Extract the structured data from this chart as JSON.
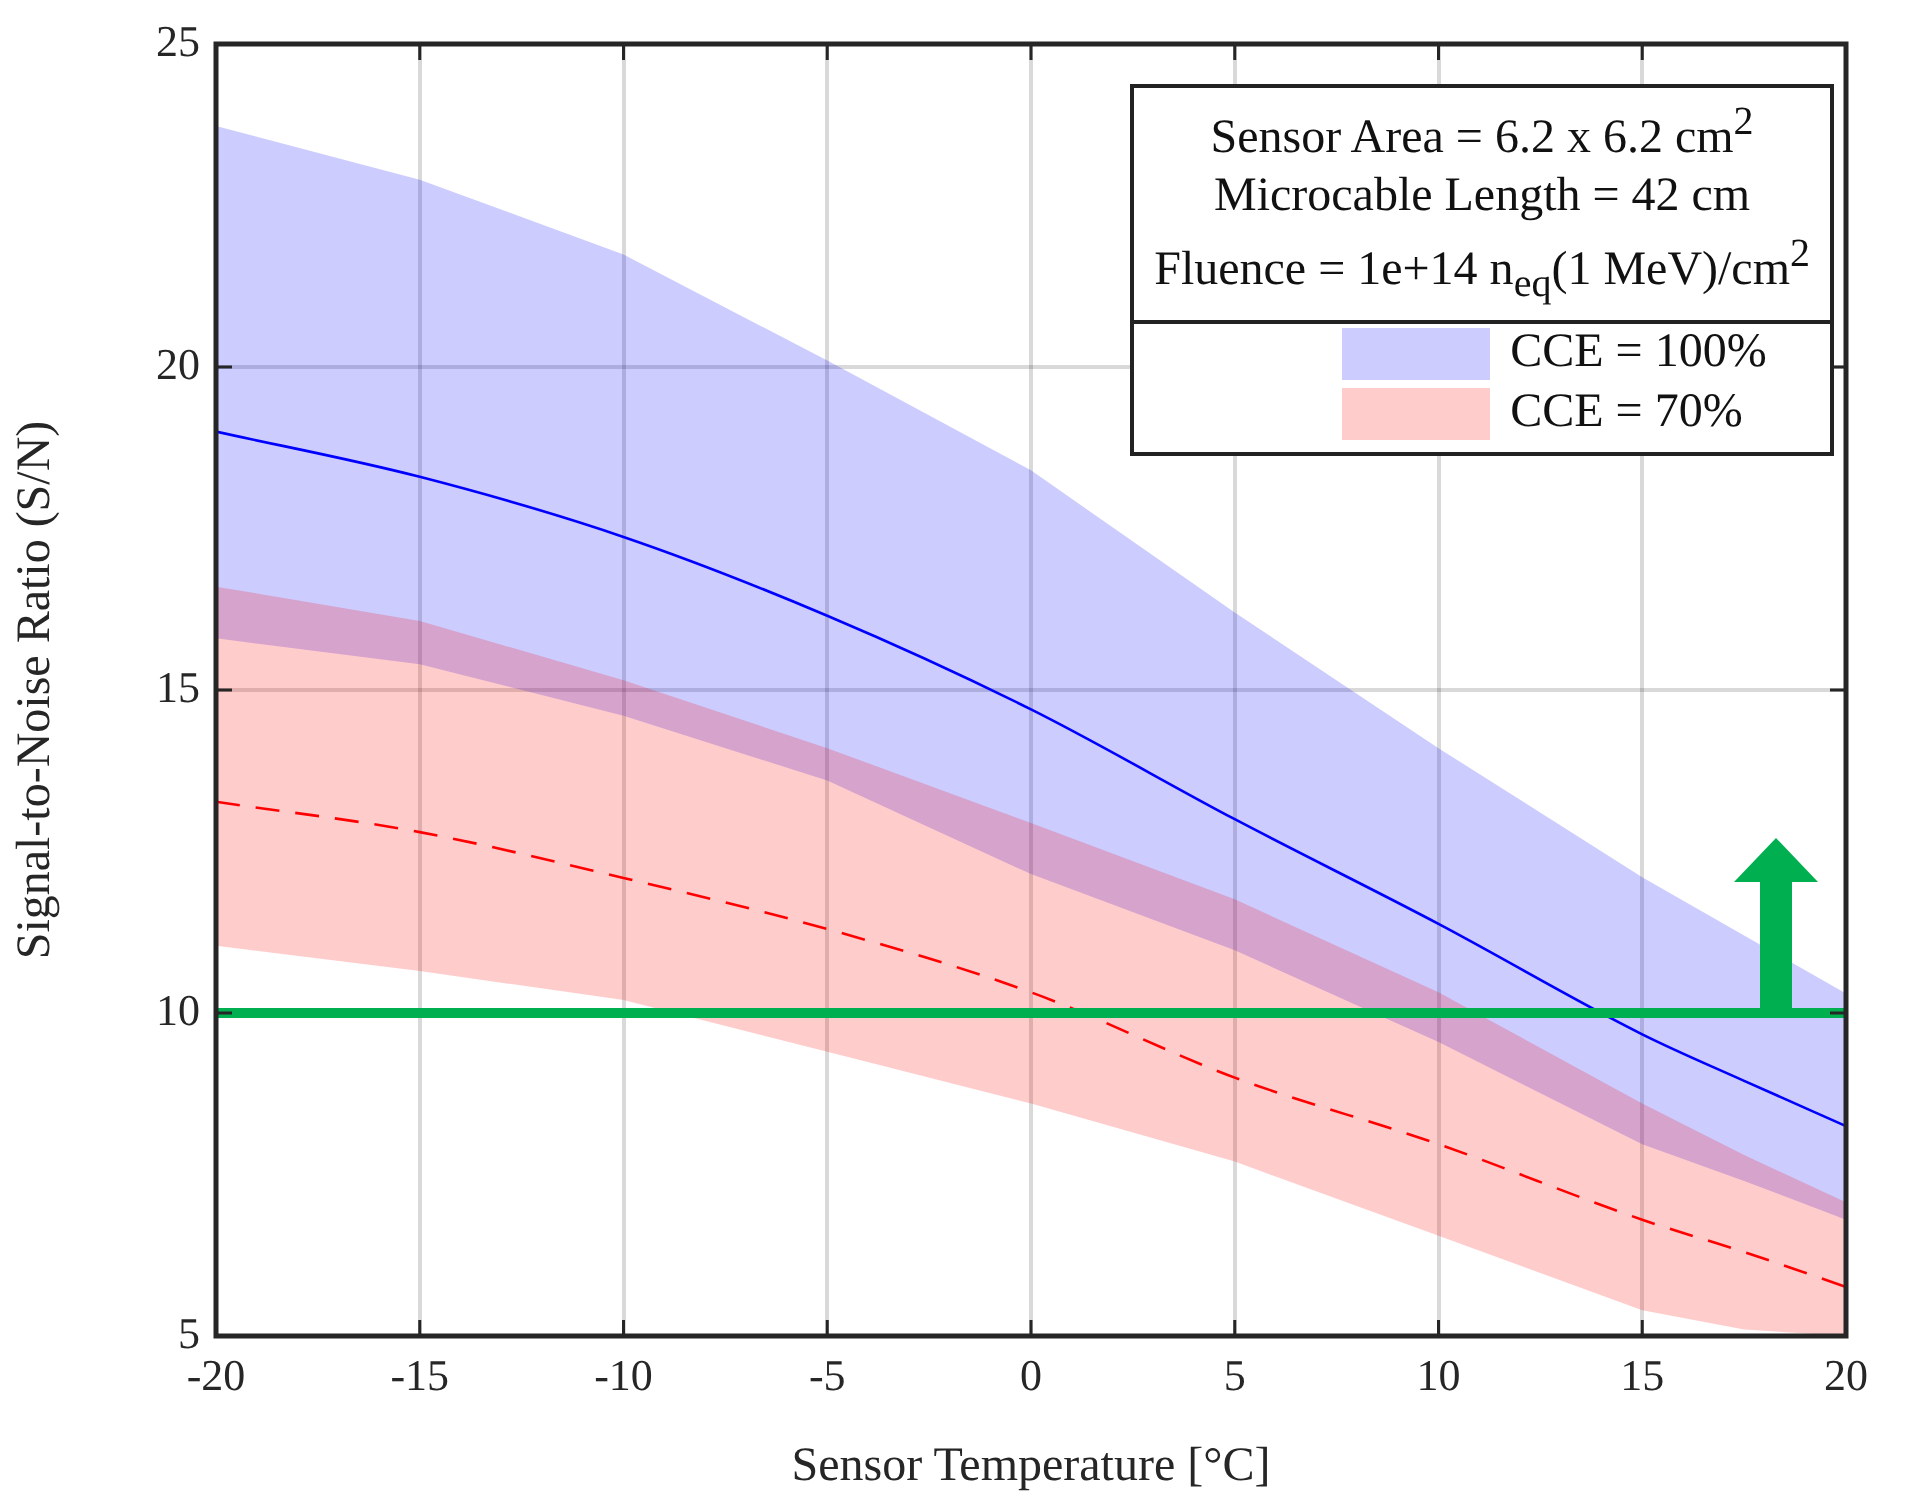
{
  "chart_data": {
    "type": "line",
    "xlabel": "Sensor Temperature [°C]",
    "ylabel": "Signal-to-Noise Ratio (S/N)",
    "x": [
      -20,
      -15,
      -10,
      -5,
      0,
      5,
      10,
      15,
      17.5,
      20
    ],
    "series": [
      {
        "name": "CCE = 100%",
        "color": "#0000ff",
        "line_style": "solid",
        "values": [
          19.0,
          18.3,
          17.37,
          16.15,
          14.7,
          13.0,
          11.38,
          9.67,
          8.95,
          8.25
        ],
        "upper": [
          23.73,
          22.9,
          21.74,
          20.1,
          18.4,
          16.2,
          14.1,
          12.1,
          11.2,
          10.3
        ],
        "lower": [
          15.8,
          15.4,
          14.6,
          13.6,
          12.15,
          10.97,
          9.55,
          7.97,
          7.4,
          6.8
        ]
      },
      {
        "name": "CCE = 70%",
        "color": "#ff0000",
        "line_style": "dashed",
        "values": [
          13.27,
          12.8,
          12.09,
          11.3,
          10.32,
          9.0,
          7.97,
          6.8,
          6.3,
          5.76
        ],
        "upper": [
          16.6,
          16.07,
          15.15,
          14.1,
          12.94,
          11.76,
          10.32,
          8.6,
          7.8,
          7.07
        ],
        "lower": [
          11.04,
          10.65,
          10.2,
          9.4,
          8.6,
          7.7,
          6.55,
          5.4,
          5.1,
          5.0
        ]
      }
    ],
    "xlim": [
      -20,
      20
    ],
    "xticks": [
      -20,
      -15,
      -10,
      -5,
      0,
      5,
      10,
      15,
      20
    ],
    "ylim": [
      5,
      25
    ],
    "yticks": [
      5,
      10,
      15,
      20,
      25
    ],
    "ref_lines": [
      {
        "axis": "y",
        "value": 10,
        "color": "#00b050"
      }
    ],
    "annotations": [
      "Sensor Area = 6.2 x 6.2 cm$^{2}$",
      "Microcable Length = 42 cm",
      "Fluence = 1e+14 n$_{eq}$(1 MeV)/cm$^{2}$"
    ],
    "grid": true,
    "legend": "top right",
    "marker": "none"
  }
}
